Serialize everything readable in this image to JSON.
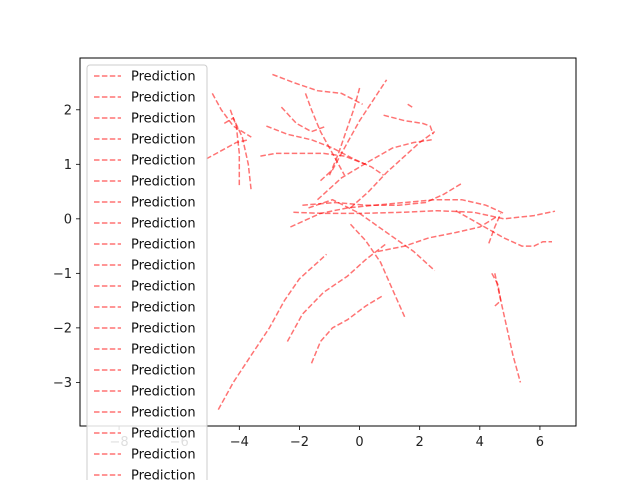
{
  "chart_data": {
    "type": "line",
    "title": "",
    "xlabel": "",
    "ylabel": "",
    "xlim": [
      -9.3,
      7.2
    ],
    "ylim": [
      -3.8,
      2.95
    ],
    "xticks": [
      -8,
      -6,
      -4,
      -2,
      0,
      2,
      4,
      6
    ],
    "yticks": [
      -3,
      -2,
      -1,
      0,
      1,
      2
    ],
    "xtick_labels": [
      "−8",
      "−6",
      "−4",
      "−2",
      "0",
      "2",
      "4",
      "6"
    ],
    "ytick_labels": [
      "−3",
      "−2",
      "−1",
      "0",
      "1",
      "2"
    ],
    "grid": false,
    "legend_placement": "upper left",
    "line_style": "dashed",
    "series_color": "#ff0000",
    "series_alpha": 0.55,
    "series": [
      {
        "name": "Prediction",
        "x": [
          -4.7,
          -4.2,
          -3.6,
          -3.0,
          -2.5,
          -2.0,
          -1.5,
          -1.1
        ],
        "y": [
          -3.5,
          -3.0,
          -2.5,
          -2.0,
          -1.5,
          -1.1,
          -0.85,
          -0.65
        ]
      },
      {
        "name": "Prediction",
        "x": [
          -2.4,
          -1.9,
          -1.2,
          -0.4,
          0.2,
          0.9
        ],
        "y": [
          -2.25,
          -1.75,
          -1.35,
          -1.05,
          -0.75,
          -0.45
        ]
      },
      {
        "name": "Prediction",
        "x": [
          -1.6,
          -1.3,
          -0.9,
          -0.4,
          0.2,
          0.8
        ],
        "y": [
          -2.65,
          -2.25,
          -2.0,
          -1.85,
          -1.6,
          -1.4
        ]
      },
      {
        "name": "Prediction",
        "x": [
          -0.3,
          0.2,
          0.7,
          1.1,
          1.5
        ],
        "y": [
          -0.1,
          -0.4,
          -0.8,
          -1.3,
          -1.8
        ]
      },
      {
        "name": "Prediction",
        "x": [
          0.6,
          1.5,
          2.3,
          3.2,
          4.0,
          4.6
        ],
        "y": [
          -0.6,
          -0.5,
          -0.35,
          -0.25,
          -0.15,
          0.05
        ]
      },
      {
        "name": "Prediction",
        "x": [
          4.5,
          4.7,
          4.9,
          5.1,
          5.35
        ],
        "y": [
          -1.0,
          -1.5,
          -2.0,
          -2.5,
          -3.0
        ]
      },
      {
        "name": "Prediction",
        "x": [
          4.4,
          4.6,
          4.7,
          4.5
        ],
        "y": [
          -1.0,
          -1.2,
          -1.5,
          -1.6
        ]
      },
      {
        "name": "Prediction",
        "x": [
          4.3,
          4.5,
          4.7
        ],
        "y": [
          -0.45,
          -0.15,
          0.1
        ]
      },
      {
        "name": "Prediction",
        "x": [
          3.2,
          4.0,
          4.8,
          5.4,
          5.8,
          6.1,
          6.4
        ],
        "y": [
          0.15,
          -0.1,
          -0.35,
          -0.5,
          -0.5,
          -0.42,
          -0.42
        ]
      },
      {
        "name": "Prediction",
        "x": [
          -2.3,
          -1.3,
          -0.4,
          0.5,
          1.5,
          2.5,
          3.4,
          4.2,
          4.8
        ],
        "y": [
          -0.15,
          0.1,
          0.2,
          0.25,
          0.3,
          0.35,
          0.35,
          0.25,
          0.1
        ]
      },
      {
        "name": "Prediction",
        "x": [
          -2.2,
          -1.2,
          0.0,
          1.4,
          2.6,
          3.8,
          4.8,
          5.8,
          6.5
        ],
        "y": [
          0.12,
          0.1,
          0.1,
          0.12,
          0.15,
          0.12,
          0.0,
          0.06,
          0.14
        ]
      },
      {
        "name": "Prediction",
        "x": [
          -1.9,
          -0.8,
          0.2,
          1.3,
          2.2,
          2.8,
          3.4
        ],
        "y": [
          0.25,
          0.3,
          0.25,
          0.25,
          0.3,
          0.45,
          0.65
        ]
      },
      {
        "name": "Prediction",
        "x": [
          -1.7,
          -0.9,
          0.0,
          0.9,
          1.8,
          2.5
        ],
        "y": [
          0.2,
          0.35,
          0.1,
          -0.25,
          -0.6,
          -0.95
        ]
      },
      {
        "name": "Prediction",
        "x": [
          -1.4,
          -0.6,
          0.3,
          1.1,
          1.8,
          2.4
        ],
        "y": [
          0.35,
          0.75,
          1.05,
          1.3,
          1.4,
          1.45
        ]
      },
      {
        "name": "Prediction",
        "x": [
          -0.3,
          0.3,
          0.9,
          1.5,
          2.0,
          2.5
        ],
        "y": [
          0.2,
          0.5,
          0.85,
          1.15,
          1.4,
          1.6
        ]
      },
      {
        "name": "Prediction",
        "x": [
          -1.3,
          -0.9,
          -0.6,
          -0.3,
          0.0,
          0.3,
          0.6,
          0.9
        ],
        "y": [
          0.7,
          0.9,
          1.2,
          1.5,
          1.8,
          2.05,
          2.3,
          2.55
        ]
      },
      {
        "name": "Prediction",
        "x": [
          -1.0,
          -0.7,
          -0.45,
          -0.2,
          0.0
        ],
        "y": [
          0.8,
          1.2,
          1.6,
          2.0,
          2.4
        ]
      },
      {
        "name": "Prediction",
        "x": [
          -1.8,
          -1.6,
          -1.3,
          -0.9,
          -0.5
        ],
        "y": [
          2.3,
          2.0,
          1.6,
          1.2,
          0.8
        ]
      },
      {
        "name": "Prediction",
        "x": [
          -3.3,
          -2.8,
          -2.0,
          -1.2,
          -0.5,
          0.2
        ],
        "y": [
          1.15,
          1.2,
          1.2,
          1.2,
          1.15,
          1.0
        ]
      },
      {
        "name": "Prediction",
        "x": [
          -3.1,
          -2.4,
          -1.6,
          -0.9,
          -0.2,
          0.4,
          0.8
        ],
        "y": [
          1.7,
          1.55,
          1.45,
          1.3,
          1.1,
          0.95,
          0.8
        ]
      },
      {
        "name": "Prediction",
        "x": [
          -2.9,
          -2.2,
          -1.4,
          -0.6,
          0.1
        ],
        "y": [
          2.65,
          2.5,
          2.35,
          2.3,
          2.1
        ]
      },
      {
        "name": "Prediction",
        "x": [
          -2.6,
          -2.1,
          -1.6,
          -1.1
        ],
        "y": [
          2.05,
          1.75,
          1.6,
          1.7
        ]
      },
      {
        "name": "Prediction",
        "x": [
          0.8,
          1.5,
          2.1,
          2.35,
          2.45
        ],
        "y": [
          1.9,
          1.8,
          1.75,
          1.7,
          1.55
        ]
      },
      {
        "name": "Prediction",
        "x": [
          1.6,
          1.75
        ],
        "y": [
          2.1,
          2.05
        ]
      },
      {
        "name": "Prediction",
        "x": [
          -4.9,
          -4.6,
          -4.2,
          -3.6
        ],
        "y": [
          2.3,
          2.0,
          1.7,
          1.5
        ]
      },
      {
        "name": "Prediction",
        "x": [
          -4.5,
          -4.2,
          -3.9,
          -3.7,
          -3.6
        ],
        "y": [
          1.75,
          1.85,
          1.5,
          1.0,
          0.5
        ]
      },
      {
        "name": "Prediction",
        "x": [
          -4.3,
          -4.1,
          -4.0,
          -4.0
        ],
        "y": [
          2.0,
          1.7,
          1.2,
          0.6
        ]
      },
      {
        "name": "Prediction",
        "x": [
          -5.1,
          -4.6,
          -4.1,
          -3.7
        ],
        "y": [
          1.1,
          1.25,
          1.4,
          1.45
        ]
      }
    ]
  },
  "legend": {
    "label": "Prediction",
    "visible_entries": 20
  }
}
